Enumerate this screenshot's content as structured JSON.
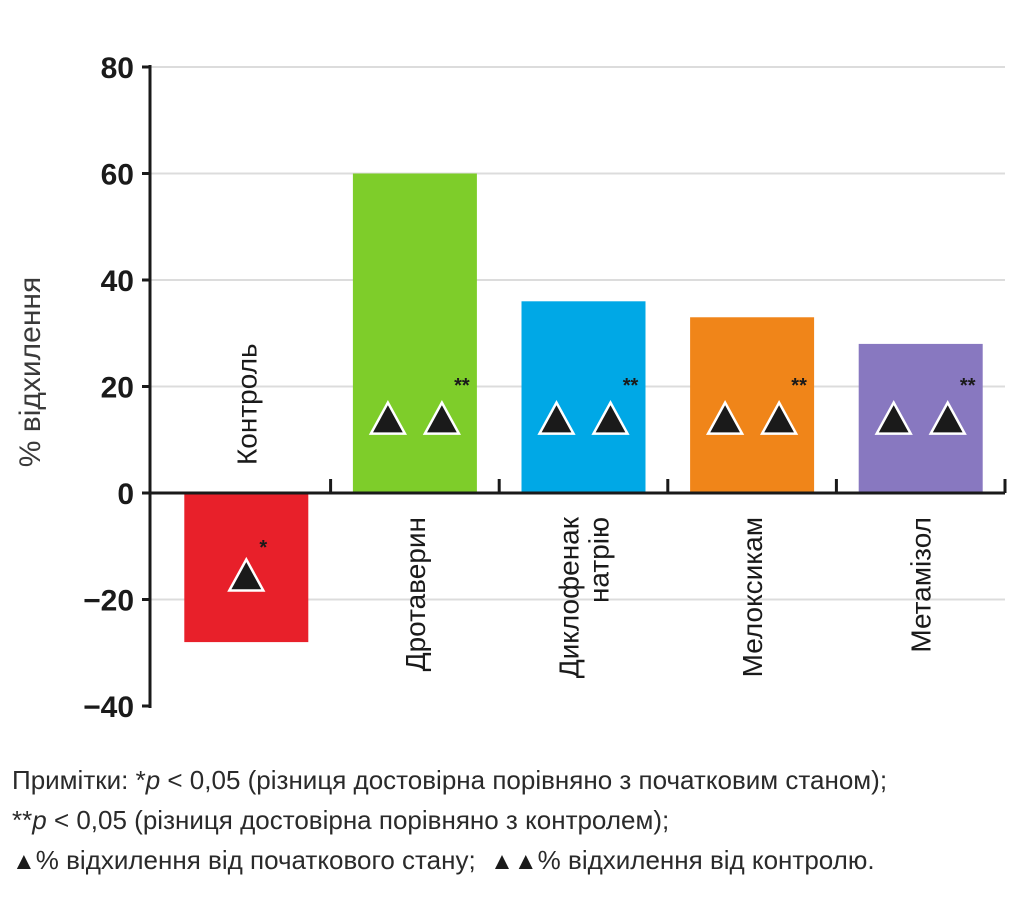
{
  "chart_data": {
    "type": "bar",
    "ylabel": "% відхилення",
    "ylim": [
      -40,
      80
    ],
    "yticks": [
      80,
      60,
      40,
      20,
      0,
      -20,
      -40
    ],
    "ytick_labels": [
      "80",
      "60",
      "40",
      "20",
      "0",
      "−20",
      "−40"
    ],
    "grid": true,
    "categories": [
      "Контроль",
      "Дротаверин",
      "Диклофенак натрію",
      "Мелоксикам",
      "Метамізол"
    ],
    "category_lines": [
      [
        "Контроль"
      ],
      [
        "Дротаверин"
      ],
      [
        "Диклофенак",
        "натрію"
      ],
      [
        "Мелоксикам"
      ],
      [
        "Метамізол"
      ]
    ],
    "values": [
      -28,
      60,
      36,
      33,
      28
    ],
    "colors": [
      "#e8202a",
      "#7ecd2a",
      "#00a8e6",
      "#f08519",
      "#8878c0"
    ],
    "markers": [
      "▲",
      "▲▲",
      "▲▲",
      "▲▲",
      "▲▲"
    ],
    "significance": [
      "*",
      "**",
      "**",
      "**",
      "**"
    ]
  },
  "notes": {
    "line1_prefix": "Примітки: *",
    "line1_p": "p",
    "line1_rest": " < 0,05 (різниця достовірна порівняно з початковим станом);",
    "line2_prefix": "**",
    "line2_p": "p",
    "line2_rest": " < 0,05 (різниця достовірна порівняно з контролем);",
    "line3_marker1": "▲",
    "line3_text1": "% відхилення від початкового стану;",
    "line3_marker2": "▲▲",
    "line3_text2": "% відхилення від контролю."
  }
}
